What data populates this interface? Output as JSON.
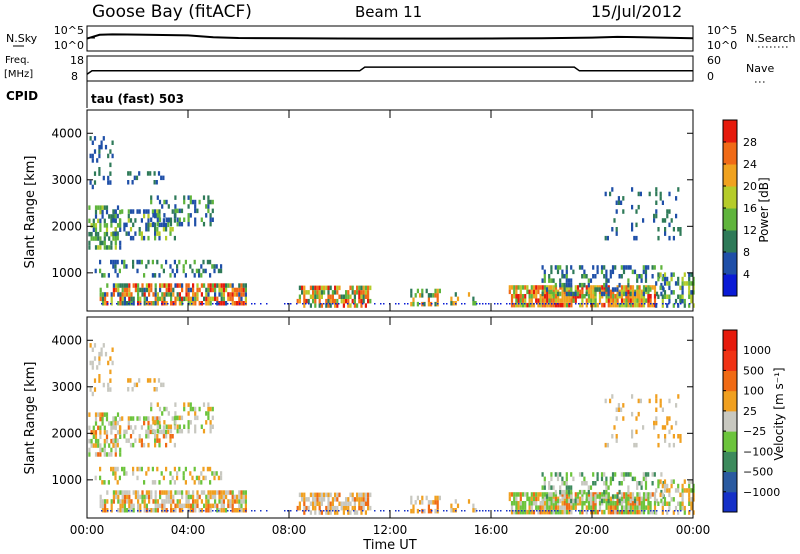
{
  "header": {
    "station": "Goose Bay (fitACF)",
    "beam": "Beam 11",
    "date": "15/Jul/2012"
  },
  "noise_panel": {
    "left_label": "N.Sky",
    "left_ticks": [
      "10^5",
      "10^0"
    ],
    "right_label": "N.Search",
    "right_ticks": [
      "10^5",
      "10^0"
    ]
  },
  "freq_panel": {
    "left_label_1": "Freq.",
    "left_label_2": "[MHz]",
    "left_ticks": [
      "18",
      "8"
    ],
    "right_label": "Nave",
    "right_ticks": [
      "60",
      "0"
    ]
  },
  "cpid": {
    "label": "CPID",
    "value": "tau (fast) 503"
  },
  "x_axis": {
    "label": "Time UT",
    "ticks": [
      "00:00",
      "04:00",
      "08:00",
      "12:00",
      "16:00",
      "20:00",
      "00:00"
    ]
  },
  "power_panel": {
    "ylabel": "Slant Range [km]",
    "yticks": [
      "4000",
      "3000",
      "2000",
      "1000"
    ],
    "colorbar_label": "Power [dB]",
    "colorbar_ticks": [
      "28",
      "24",
      "20",
      "16",
      "12",
      "8",
      "4"
    ],
    "colors": [
      "#0a1bd6",
      "#1f4fa8",
      "#2e7a58",
      "#5fb43c",
      "#b5cc2a",
      "#f0a21f",
      "#f06a16",
      "#e61a0c"
    ]
  },
  "velocity_panel": {
    "ylabel": "Slant Range [km]",
    "yticks": [
      "4000",
      "3000",
      "2000",
      "1000"
    ],
    "colorbar_label": "Velocity [m s⁻¹]",
    "colorbar_ticks": [
      "1000",
      "500",
      "100",
      "25",
      "−25",
      "−100",
      "−500",
      "−1000"
    ],
    "colors": [
      "#1530c8",
      "#2a5aa0",
      "#3c8a5c",
      "#6cc43c",
      "#c8c8c0",
      "#f0a020",
      "#f06a14",
      "#f03214",
      "#e61a0c"
    ]
  },
  "chart_data": [
    {
      "type": "line",
      "panel": "noise",
      "x_range_hours": [
        0,
        24
      ],
      "y_scale": "log",
      "ylim": [
        1,
        100000
      ],
      "series": [
        {
          "x": [
            0,
            0.5,
            1,
            2,
            3,
            4,
            5,
            6,
            8,
            10,
            12,
            14,
            16,
            18,
            20,
            21,
            22,
            23,
            24
          ],
          "y": [
            300,
            2000,
            2500,
            2200,
            1800,
            1500,
            600,
            400,
            350,
            320,
            300,
            300,
            310,
            350,
            500,
            700,
            600,
            450,
            350
          ]
        }
      ]
    },
    {
      "type": "line",
      "panel": "frequency",
      "x_range_hours": [
        0,
        24
      ],
      "ylim": [
        8,
        18
      ],
      "series": [
        {
          "x": [
            0,
            0.2,
            10.8,
            11.0,
            19.3,
            19.5,
            24
          ],
          "y": [
            10.5,
            12.0,
            12.0,
            13.6,
            13.6,
            12.0,
            12.0
          ]
        }
      ]
    },
    {
      "type": "heatmap",
      "panel": "power",
      "x_range_hours": [
        0,
        24
      ],
      "y_range_km": [
        180,
        4500
      ],
      "colorbar_range_db": [
        0,
        32
      ]
    },
    {
      "type": "heatmap",
      "panel": "velocity",
      "x_range_hours": [
        0,
        24
      ],
      "y_range_km": [
        180,
        4500
      ],
      "colorbar_range_ms": [
        -1000,
        1000
      ]
    }
  ]
}
